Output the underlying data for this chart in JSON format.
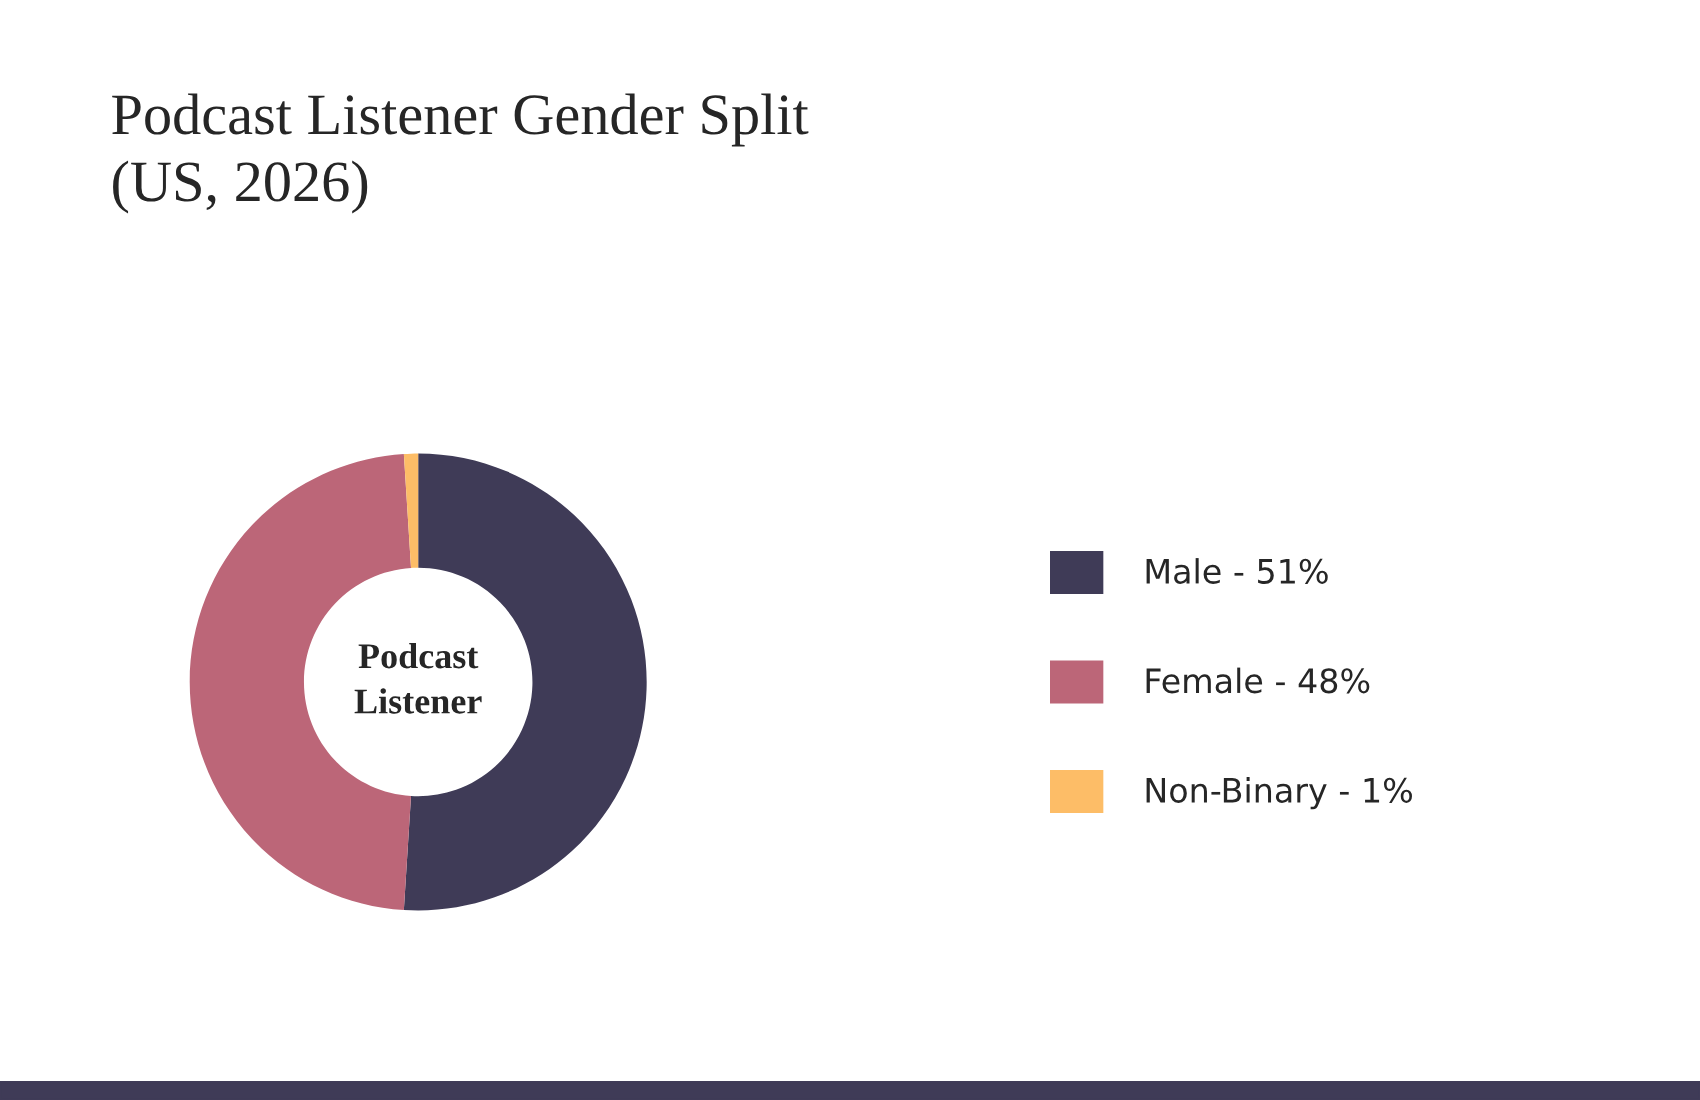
{
  "chart_data": {
    "type": "donut",
    "title": "Podcast Listener Gender Split\n(US, 2026)",
    "categories": [
      "Male - 51%",
      "Female - 48%",
      "Non-Binary - 1%"
    ],
    "values": [
      51,
      48,
      1
    ],
    "colors": [
      "#3f3b57",
      "#bc6678",
      "#fdbd67"
    ],
    "annotations": [
      "Podcast\nListener"
    ],
    "legend": "right"
  }
}
